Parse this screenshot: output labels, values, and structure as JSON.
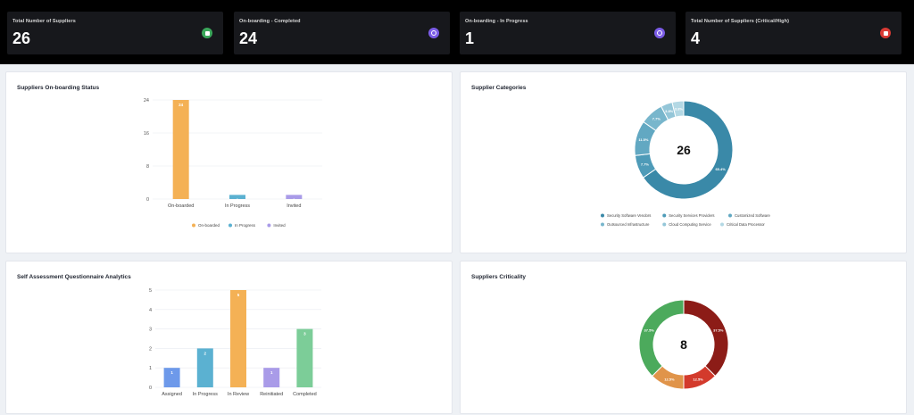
{
  "stats": [
    {
      "label": "Total Number of Suppliers",
      "value": "26",
      "icon": "document-icon",
      "color": "#3aa65a"
    },
    {
      "label": "On-boarding - Completed",
      "value": "24",
      "icon": "gear-icon",
      "color": "#7b5ce6"
    },
    {
      "label": "On-boarding - In Progress",
      "value": "1",
      "icon": "gear-icon",
      "color": "#7b5ce6"
    },
    {
      "label": "Total Number of Suppliers (Critical/High)",
      "value": "4",
      "icon": "alert-icon",
      "color": "#d83a34"
    }
  ],
  "onboarding": {
    "title": "Suppliers On-boarding Status",
    "chart_data": {
      "type": "bar",
      "categories": [
        "On-boarded",
        "In Progress",
        "Invited"
      ],
      "values": [
        24,
        1,
        1
      ],
      "data_labels": [
        "24",
        "1",
        "1"
      ],
      "colors": [
        "#f4b155",
        "#5bb1d1",
        "#a99be8"
      ],
      "legend": [
        "On-boarded",
        "In Progress",
        "Invited"
      ],
      "ylim": [
        0,
        24
      ],
      "yticks": [
        0,
        8,
        16,
        24
      ],
      "grid": true,
      "legend_position": "bottom"
    }
  },
  "categories": {
    "title": "Supplier Categories",
    "center_label": "26",
    "chart_data": {
      "type": "pie",
      "donut": true,
      "labels": [
        "Security Software Vendors",
        "Security Services Providers",
        "Customized Software",
        "Outsourced Infrastructure",
        "Cloud Computing Service",
        "Critical Data Processor"
      ],
      "values": [
        65.4,
        7.7,
        11.5,
        7.7,
        3.8,
        3.8
      ],
      "data_labels": [
        "65.4%",
        "7.7%",
        "11.5%",
        "7.7%",
        "3.8%",
        "3.8%"
      ],
      "colors": [
        "#3a89a8",
        "#4e9bb8",
        "#62a8c2",
        "#78b6cc",
        "#94c6d8",
        "#b3d8e4"
      ],
      "legend_position": "bottom"
    }
  },
  "questionnaire": {
    "title": "Self Assessment Questionnaire Analytics",
    "chart_data": {
      "type": "bar",
      "categories": [
        "Assigned",
        "In Progress",
        "In Review",
        "Reinitiated",
        "Completed"
      ],
      "values": [
        1,
        2,
        5,
        1,
        3
      ],
      "data_labels": [
        "1",
        "2",
        "5",
        "1",
        "3"
      ],
      "colors": [
        "#6d99ea",
        "#5bb1d1",
        "#f4b155",
        "#a99be8",
        "#7ccd98"
      ],
      "ylim": [
        0,
        5
      ],
      "yticks": [
        0,
        1,
        2,
        3,
        4,
        5
      ],
      "grid": true
    }
  },
  "criticality": {
    "title": "Suppliers Criticality",
    "center_label": "8",
    "chart_data": {
      "type": "pie",
      "donut": true,
      "values": [
        37.5,
        12.5,
        12.5,
        37.5
      ],
      "data_labels": [
        "37.5%",
        "12.5%",
        "12.5%",
        "37.5%"
      ],
      "colors": [
        "#8c1c17",
        "#d33a2c",
        "#e0944a",
        "#4caa5c"
      ]
    }
  }
}
